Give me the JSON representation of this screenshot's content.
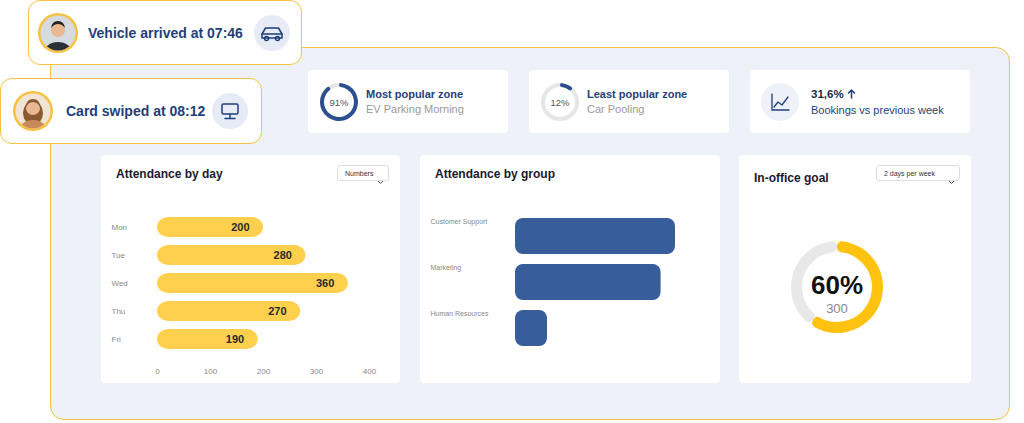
{
  "notifications": [
    "Vehicle arrived at 07:46",
    "Card swiped at 08:12"
  ],
  "cards": [
    {
      "title": "Most popular zone",
      "subtitle": "EV Parking Morning",
      "value": 91,
      "value_label": "91%",
      "ring_range": [
        0,
        100
      ],
      "color": "#2c4f8f"
    },
    {
      "title": "Least popular zone",
      "subtitle": "Car Pooling",
      "value": 12,
      "value_label": "12%",
      "ring_range": [
        0,
        100
      ],
      "color": "#2c4f8f"
    },
    {
      "title": "Bookings vs previous week",
      "value_label": "31,6%",
      "trend": "up"
    }
  ],
  "dropdowns": [
    "Numbers",
    null,
    "2 days per week"
  ],
  "chart_data": [
    {
      "type": "bar",
      "title": "Attendance by day",
      "orientation": "horizontal",
      "categories": [
        "Mon",
        "Tue",
        "Wed",
        "Thu",
        "Fri"
      ],
      "values": [
        200,
        280,
        360,
        270,
        190
      ],
      "color": "#ffd04d",
      "xlim": [
        0,
        400
      ],
      "xticks": [
        0,
        100,
        200,
        300,
        400
      ],
      "data_labels": true
    },
    {
      "type": "bar",
      "title": "Attendance by group",
      "orientation": "horizontal",
      "categories": [
        "Customer Support",
        "Marketing",
        "Human Resources"
      ],
      "values": [
        100,
        91,
        20
      ],
      "color": "#375d9b",
      "tick_labels": "y"
    },
    {
      "type": "donut",
      "title": "In-office goal",
      "values": [
        60,
        40
      ],
      "value_labels": [
        "60%",
        null
      ],
      "count": 300,
      "colors": [
        "#ffc20e",
        "#e8e8e8"
      ]
    }
  ]
}
